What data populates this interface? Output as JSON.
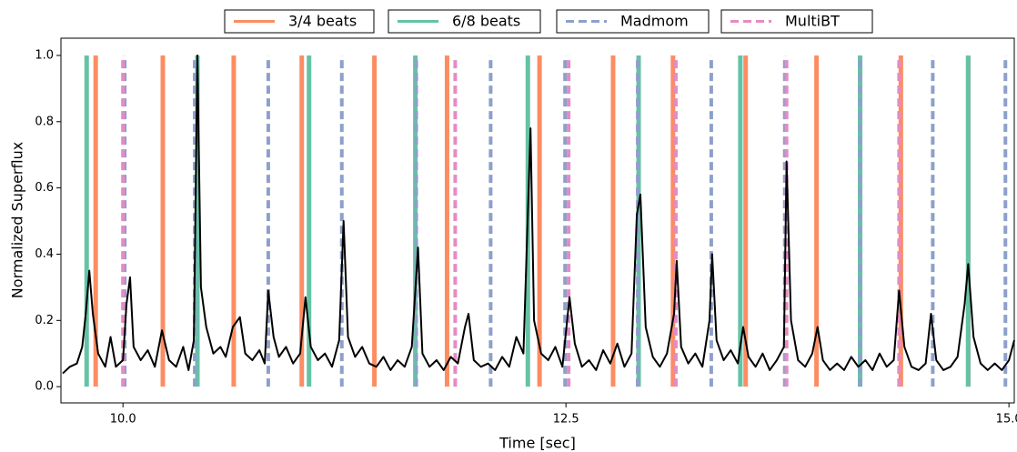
{
  "chart_data": {
    "type": "line",
    "xlabel": "Time [sec]",
    "ylabel": "Normalized Superflux",
    "xlim": [
      9.65,
      15.03
    ],
    "ylim": [
      -0.049,
      1.052
    ],
    "xticks": [
      {
        "value": 10,
        "label": "10.0"
      },
      {
        "value": 12.5,
        "label": "12.5"
      },
      {
        "value": 15,
        "label": "15.0"
      }
    ],
    "yticks": [
      {
        "value": 0,
        "label": "0.0"
      },
      0.2,
      0.4,
      0.6,
      0.8,
      {
        "value": 1,
        "label": "1.0"
      }
    ],
    "x": [
      9.66,
      9.7,
      9.74,
      9.77,
      9.79,
      9.81,
      9.83,
      9.86,
      9.9,
      9.93,
      9.96,
      10.0,
      10.02,
      10.04,
      10.06,
      10.1,
      10.14,
      10.18,
      10.22,
      10.26,
      10.3,
      10.34,
      10.37,
      10.4,
      10.42,
      10.44,
      10.47,
      10.51,
      10.55,
      10.58,
      10.62,
      10.66,
      10.69,
      10.73,
      10.77,
      10.8,
      10.82,
      10.85,
      10.88,
      10.92,
      10.96,
      11.0,
      11.03,
      11.06,
      11.1,
      11.14,
      11.18,
      11.22,
      11.245,
      11.27,
      11.31,
      11.35,
      11.39,
      11.43,
      11.47,
      11.51,
      11.55,
      11.59,
      11.63,
      11.665,
      11.69,
      11.73,
      11.77,
      11.81,
      11.85,
      11.89,
      11.93,
      11.95,
      11.98,
      12.02,
      12.06,
      12.1,
      12.14,
      12.18,
      12.22,
      12.26,
      12.3,
      12.32,
      12.36,
      12.4,
      12.44,
      12.48,
      12.52,
      12.55,
      12.59,
      12.63,
      12.67,
      12.71,
      12.75,
      12.79,
      12.83,
      12.87,
      12.9,
      12.92,
      12.95,
      12.99,
      13.03,
      13.07,
      13.11,
      13.125,
      13.15,
      13.19,
      13.23,
      13.27,
      13.31,
      13.325,
      13.35,
      13.39,
      13.43,
      13.47,
      13.5,
      13.53,
      13.57,
      13.61,
      13.65,
      13.69,
      13.73,
      13.745,
      13.77,
      13.81,
      13.85,
      13.89,
      13.92,
      13.95,
      13.99,
      14.03,
      14.07,
      14.11,
      14.15,
      14.19,
      14.23,
      14.27,
      14.31,
      14.35,
      14.38,
      14.41,
      14.45,
      14.49,
      14.53,
      14.56,
      14.59,
      14.63,
      14.67,
      14.71,
      14.75,
      14.77,
      14.8,
      14.84,
      14.88,
      14.92,
      14.96,
      15.0,
      15.03
    ],
    "series": [
      {
        "color": "#000000",
        "values": [
          0.04,
          0.06,
          0.07,
          0.12,
          0.22,
          0.35,
          0.22,
          0.1,
          0.06,
          0.15,
          0.06,
          0.08,
          0.25,
          0.33,
          0.12,
          0.08,
          0.11,
          0.06,
          0.17,
          0.08,
          0.06,
          0.12,
          0.05,
          0.14,
          1.0,
          0.3,
          0.18,
          0.1,
          0.12,
          0.09,
          0.18,
          0.21,
          0.1,
          0.08,
          0.11,
          0.07,
          0.29,
          0.15,
          0.09,
          0.12,
          0.07,
          0.1,
          0.27,
          0.12,
          0.08,
          0.1,
          0.06,
          0.14,
          0.5,
          0.15,
          0.09,
          0.12,
          0.07,
          0.06,
          0.09,
          0.05,
          0.08,
          0.06,
          0.12,
          0.42,
          0.1,
          0.06,
          0.08,
          0.05,
          0.09,
          0.07,
          0.18,
          0.22,
          0.08,
          0.06,
          0.07,
          0.05,
          0.09,
          0.06,
          0.15,
          0.1,
          0.78,
          0.2,
          0.1,
          0.08,
          0.12,
          0.06,
          0.27,
          0.13,
          0.06,
          0.08,
          0.05,
          0.11,
          0.07,
          0.13,
          0.06,
          0.1,
          0.52,
          0.58,
          0.18,
          0.09,
          0.06,
          0.1,
          0.22,
          0.38,
          0.12,
          0.07,
          0.1,
          0.06,
          0.2,
          0.4,
          0.14,
          0.08,
          0.11,
          0.07,
          0.18,
          0.09,
          0.06,
          0.1,
          0.05,
          0.08,
          0.12,
          0.68,
          0.2,
          0.08,
          0.06,
          0.1,
          0.18,
          0.08,
          0.05,
          0.07,
          0.05,
          0.09,
          0.06,
          0.08,
          0.05,
          0.1,
          0.06,
          0.08,
          0.29,
          0.12,
          0.06,
          0.05,
          0.07,
          0.22,
          0.08,
          0.05,
          0.06,
          0.09,
          0.25,
          0.37,
          0.15,
          0.07,
          0.05,
          0.07,
          0.05,
          0.08,
          0.14
        ]
      }
    ],
    "events": [
      {
        "name": "3/4 beats",
        "color": "#fc8d62",
        "dashed": false,
        "times": [
          9.846,
          10.225,
          10.625,
          11.009,
          11.419,
          11.829,
          12.351,
          12.766,
          13.104,
          13.514,
          13.914,
          14.39,
          14.77
        ]
      },
      {
        "name": "6/8 beats",
        "color": "#66c2a5",
        "dashed": false,
        "times": [
          9.795,
          10.42,
          11.05,
          11.65,
          12.285,
          12.91,
          13.484,
          14.16,
          14.77
        ]
      },
      {
        "name": "Madmom",
        "color": "#8da0cb",
        "dashed": true,
        "times": [
          10.01,
          10.405,
          10.82,
          11.235,
          11.655,
          12.075,
          12.495,
          12.905,
          13.32,
          13.735,
          14.16,
          14.57,
          14.98
        ]
      },
      {
        "name": "MultiBT",
        "color": "#e78ac3",
        "dashed": true,
        "times": [
          10.0,
          11.875,
          12.515,
          13.12,
          13.745,
          14.38
        ]
      }
    ]
  }
}
